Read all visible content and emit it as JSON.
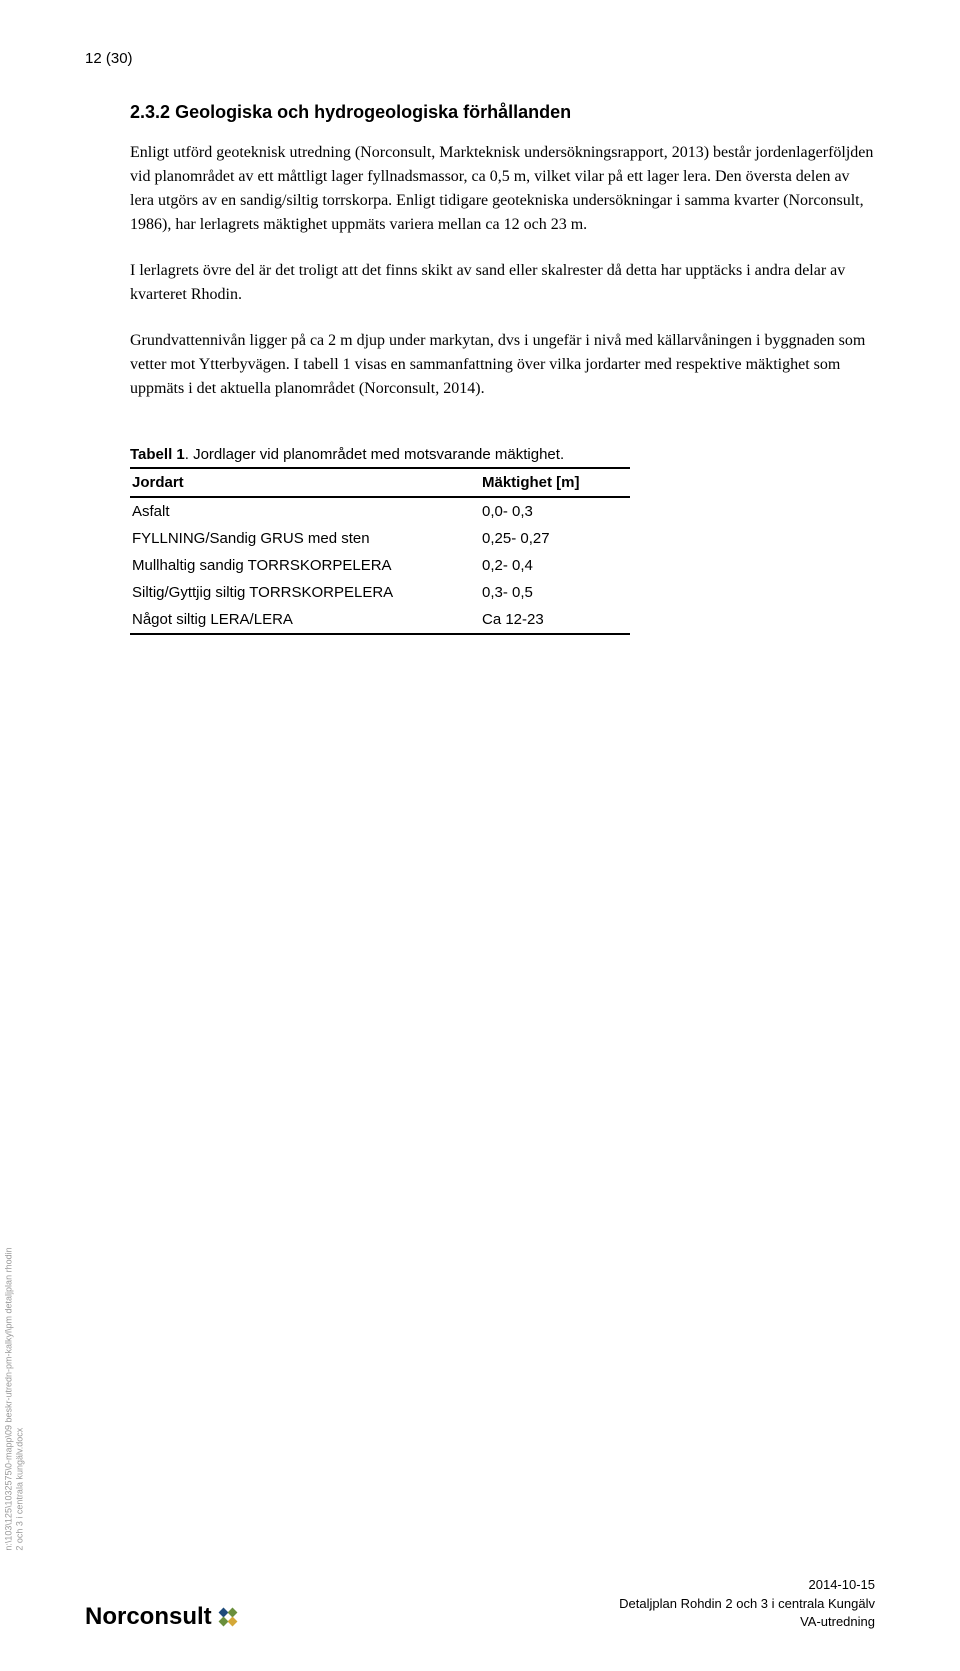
{
  "page_number": "12 (30)",
  "section": {
    "number": "2.3.2",
    "title": "Geologiska och hydrogeologiska förhållanden"
  },
  "paragraphs": {
    "p1": "Enligt utförd geoteknisk utredning (Norconsult, Markteknisk undersökningsrapport, 2013) består jordenlagerföljden vid planområdet av ett måttligt lager fyllnadsmassor, ca 0,5 m, vilket vilar på ett lager lera. Den översta delen av lera utgörs av en sandig/siltig torrskorpa. Enligt tidigare geotekniska undersökningar i samma kvarter (Norconsult, 1986), har lerlagrets mäktighet uppmäts variera mellan ca 12 och 23 m.",
    "p2": "I lerlagrets övre del är det troligt att det finns skikt av sand eller skalrester då detta har upptäcks i andra delar av kvarteret Rhodin.",
    "p3": "Grundvattennivån ligger på ca 2 m djup under markytan, dvs i ungefär i nivå med källarvåningen i byggnaden som vetter mot Ytterbyvägen. I tabell 1 visas en sammanfattning över vilka jordarter med respektive mäktighet som uppmäts i det aktuella planområdet (Norconsult, 2014)."
  },
  "table": {
    "caption_bold": "Tabell 1",
    "caption_rest": ". Jordlager vid planområdet med motsvarande mäktighet.",
    "headers": {
      "col1": "Jordart",
      "col2": "Mäktighet [m]"
    },
    "rows": [
      {
        "jordart": "Asfalt",
        "maktighet": "0,0- 0,3"
      },
      {
        "jordart": "FYLLNING/Sandig GRUS med sten",
        "maktighet": "0,25- 0,27"
      },
      {
        "jordart": "Mullhaltig sandig TORRSKORPELERA",
        "maktighet": "0,2- 0,4"
      },
      {
        "jordart": "Siltig/Gyttjig siltig TORRSKORPELERA",
        "maktighet": "0,3- 0,5"
      },
      {
        "jordart": "Något siltig LERA/LERA",
        "maktighet": "Ca 12-23"
      }
    ]
  },
  "vertical_label": {
    "line1": "n:\\103\\125\\1032575\\0-mapp\\09 beskr-utredn-pm-kalkyl\\pm detaljplan rhodin",
    "line2": "2 och 3 i centrala kungälv.docx"
  },
  "footer": {
    "logo_text": "Norconsult",
    "date": "2014-10-15",
    "project": "Detaljplan Rohdin 2 och 3 i centrala Kungälv",
    "doc_type": "VA-utredning"
  },
  "colors": {
    "text": "#000000",
    "background": "#ffffff",
    "vertical_text": "#999999",
    "dot_blue": "#1e4a7a",
    "dot_green": "#6a8f3c",
    "dot_yellow": "#d4a838"
  }
}
